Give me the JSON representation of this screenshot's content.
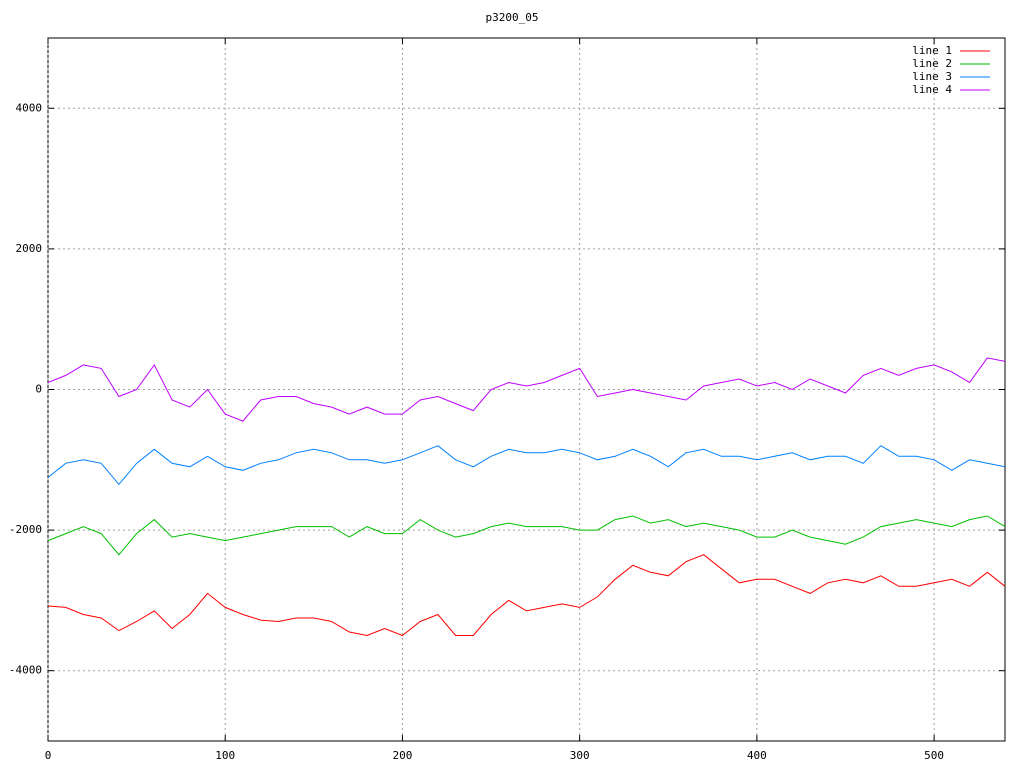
{
  "chart_data": {
    "type": "line",
    "title": "p3200_05",
    "x": [
      0,
      10,
      20,
      30,
      40,
      50,
      60,
      70,
      80,
      90,
      100,
      110,
      120,
      130,
      140,
      150,
      160,
      170,
      180,
      190,
      200,
      210,
      220,
      230,
      240,
      250,
      260,
      270,
      280,
      290,
      300,
      310,
      320,
      330,
      340,
      350,
      360,
      370,
      380,
      390,
      400,
      410,
      420,
      430,
      440,
      450,
      460,
      470,
      480,
      490,
      500,
      510,
      520,
      530,
      540
    ],
    "series": [
      {
        "name": "line 1",
        "color": "#ff0000",
        "values": [
          -3080,
          -3100,
          -3200,
          -3250,
          -3430,
          -3300,
          -3150,
          -3400,
          -3200,
          -2900,
          -3100,
          -3200,
          -3280,
          -3300,
          -3250,
          -3250,
          -3300,
          -3450,
          -3500,
          -3400,
          -3500,
          -3300,
          -3200,
          -3500,
          -3500,
          -3200,
          -3000,
          -3150,
          -3100,
          -3050,
          -3100,
          -2950,
          -2700,
          -2500,
          -2600,
          -2650,
          -2450,
          -2350,
          -2550,
          -2750,
          -2700,
          -2700,
          -2800,
          -2900,
          -2750,
          -2700,
          -2750,
          -2650,
          -2800,
          -2800,
          -2750,
          -2700,
          -2800,
          -2600,
          -2800
        ]
      },
      {
        "name": "line 2",
        "color": "#00c000",
        "values": [
          -2150,
          -2050,
          -1950,
          -2050,
          -2350,
          -2050,
          -1850,
          -2100,
          -2050,
          -2100,
          -2150,
          -2100,
          -2050,
          -2000,
          -1950,
          -1950,
          -1950,
          -2100,
          -1950,
          -2050,
          -2050,
          -1850,
          -2000,
          -2100,
          -2050,
          -1950,
          -1900,
          -1950,
          -1950,
          -1950,
          -2000,
          -2000,
          -1850,
          -1800,
          -1900,
          -1850,
          -1950,
          -1900,
          -1950,
          -2000,
          -2100,
          -2100,
          -2000,
          -2100,
          -2150,
          -2200,
          -2100,
          -1950,
          -1900,
          -1850,
          -1900,
          -1950,
          -1850,
          -1800,
          -1950
        ]
      },
      {
        "name": "line 3",
        "color": "#0080ff",
        "values": [
          -1250,
          -1050,
          -1000,
          -1050,
          -1350,
          -1050,
          -850,
          -1050,
          -1100,
          -950,
          -1100,
          -1150,
          -1050,
          -1000,
          -900,
          -850,
          -900,
          -1000,
          -1000,
          -1050,
          -1000,
          -900,
          -800,
          -1000,
          -1100,
          -950,
          -850,
          -900,
          -900,
          -850,
          -900,
          -1000,
          -950,
          -850,
          -950,
          -1100,
          -900,
          -850,
          -950,
          -950,
          -1000,
          -950,
          -900,
          -1000,
          -950,
          -950,
          -1050,
          -800,
          -950,
          -950,
          -1000,
          -1150,
          -1000,
          -1050,
          -1100
        ]
      },
      {
        "name": "line 4",
        "color": "#c000ff",
        "values": [
          100,
          200,
          350,
          300,
          -100,
          0,
          350,
          -150,
          -250,
          0,
          -350,
          -450,
          -150,
          -100,
          -100,
          -200,
          -250,
          -350,
          -250,
          -350,
          -350,
          -150,
          -100,
          -200,
          -300,
          0,
          100,
          50,
          100,
          200,
          300,
          -100,
          -50,
          0,
          -50,
          -100,
          -150,
          50,
          100,
          150,
          50,
          100,
          0,
          150,
          50,
          -50,
          200,
          300,
          200,
          300,
          350,
          250,
          100,
          450,
          400
        ]
      }
    ],
    "xlim": [
      0,
      540
    ],
    "ylim": [
      -5000,
      5000
    ],
    "xticks": [
      0,
      100,
      200,
      300,
      400,
      500
    ],
    "yticks": [
      -4000,
      -2000,
      0,
      2000,
      4000
    ],
    "grid": true,
    "legend": "top-right"
  }
}
